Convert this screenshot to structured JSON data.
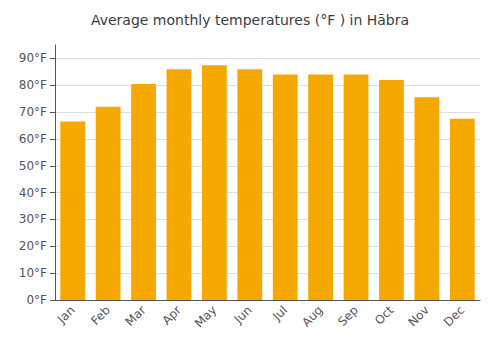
{
  "chart_data": {
    "type": "bar",
    "title": "Average monthly temperatures (°F ) in Hābra",
    "categories": [
      "Jan",
      "Feb",
      "Mar",
      "Apr",
      "May",
      "Jun",
      "Jul",
      "Aug",
      "Sep",
      "Oct",
      "Nov",
      "Dec"
    ],
    "values": [
      66.5,
      72,
      80.5,
      86,
      87.5,
      86,
      84,
      84,
      84,
      82,
      75.5,
      67.5
    ],
    "color": "#F5A800",
    "ylim": [
      0,
      95
    ],
    "yticks": [
      {
        "value": 0,
        "label": "0°F"
      },
      {
        "value": 10,
        "label": "10°F"
      },
      {
        "value": 20,
        "label": "20°F"
      },
      {
        "value": 30,
        "label": "30°F"
      },
      {
        "value": 40,
        "label": "40°F"
      },
      {
        "value": 50,
        "label": "50°F"
      },
      {
        "value": 60,
        "label": "60°F"
      },
      {
        "value": 70,
        "label": "70°F"
      },
      {
        "value": 80,
        "label": "80°F"
      },
      {
        "value": 90,
        "label": "90°F"
      }
    ],
    "grid": true
  }
}
